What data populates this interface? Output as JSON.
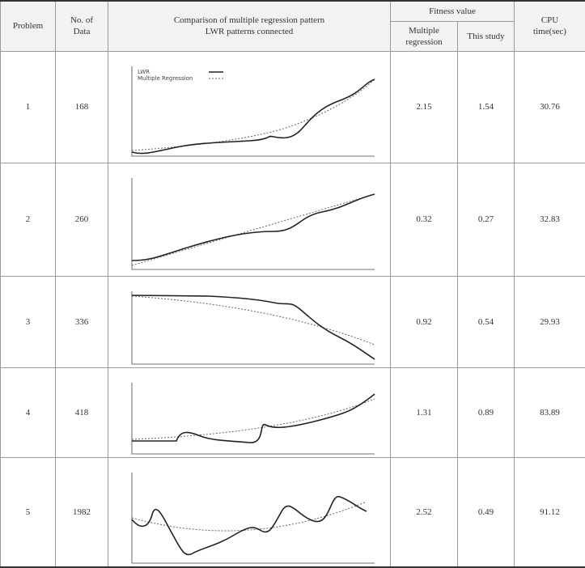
{
  "header": {
    "problem": "Problem",
    "no_of_data": "No. of\nData",
    "comparison": "Comparison of multiple regression pattern\nLWR patterns connected",
    "fitness_value": "Fitness value",
    "multiple_regression": "Multiple\nregression",
    "this_study": "This study",
    "cpu_time": "CPU\ntime(sec)"
  },
  "legend": {
    "lwr": "LWR",
    "multiple_regression": "Multiple Regression"
  },
  "rows": [
    [
      "1",
      "168",
      "2.15",
      "1.54",
      "30.76"
    ],
    [
      "2",
      "260",
      "0.32",
      "0.27",
      "32.83"
    ],
    [
      "3",
      "336",
      "0.92",
      "0.54",
      "29.93"
    ],
    [
      "4",
      "418",
      "1.31",
      "0.89",
      "83.89"
    ],
    [
      "5",
      "1982",
      "2.52",
      "0.49",
      "91.12"
    ]
  ]
}
